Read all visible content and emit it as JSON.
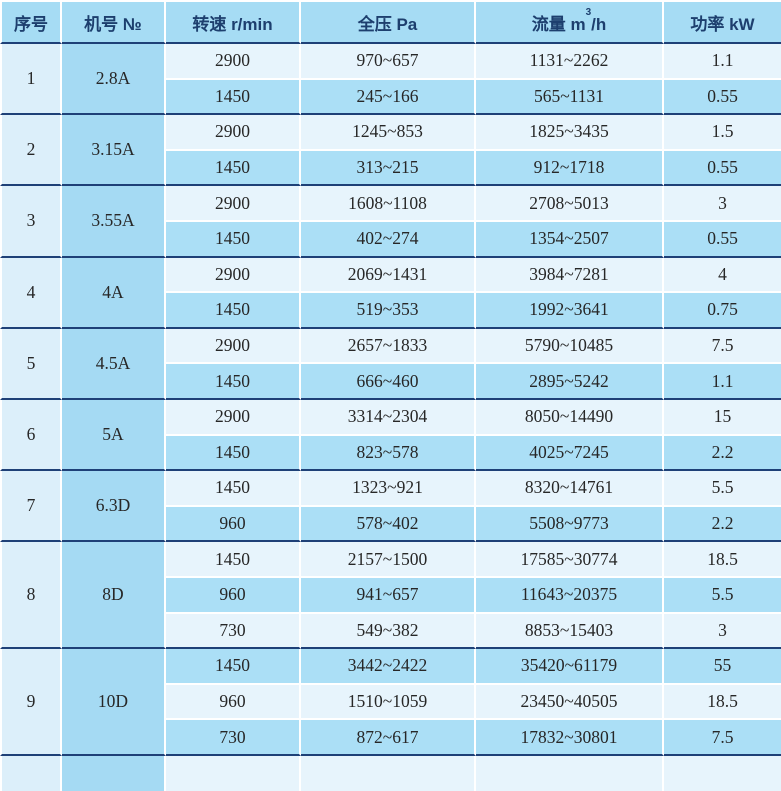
{
  "colors": {
    "header_bg": "#a6dcf4",
    "header_text": "#1d3f6e",
    "serial_col_bg": "#dceffa",
    "model_col_bg": "#a5daf3",
    "row_light_bg": "#e7f4fc",
    "row_medium_bg": "#abdff6",
    "divider_navy": "#1e4077",
    "cell_border_white": "#ffffff",
    "body_text": "#272727"
  },
  "table": {
    "headers": {
      "serial": "序号",
      "model": "机号 №",
      "speed": "转速 r/min",
      "pressure": "全压 Pa",
      "flow_pre": "流量 m",
      "flow_sup": "3",
      "flow_post": "/h",
      "power": "功率 kW"
    },
    "groups": [
      {
        "serial": "1",
        "model": "2.8A",
        "rows": [
          {
            "speed": "2900",
            "pressure": "970~657",
            "flow": "1131~2262",
            "power": "1.1"
          },
          {
            "speed": "1450",
            "pressure": "245~166",
            "flow": "565~1131",
            "power": "0.55"
          }
        ]
      },
      {
        "serial": "2",
        "model": "3.15A",
        "rows": [
          {
            "speed": "2900",
            "pressure": "1245~853",
            "flow": "1825~3435",
            "power": "1.5"
          },
          {
            "speed": "1450",
            "pressure": "313~215",
            "flow": "912~1718",
            "power": "0.55"
          }
        ]
      },
      {
        "serial": "3",
        "model": "3.55A",
        "rows": [
          {
            "speed": "2900",
            "pressure": "1608~1108",
            "flow": "2708~5013",
            "power": "3"
          },
          {
            "speed": "1450",
            "pressure": "402~274",
            "flow": "1354~2507",
            "power": "0.55"
          }
        ]
      },
      {
        "serial": "4",
        "model": "4A",
        "rows": [
          {
            "speed": "2900",
            "pressure": "2069~1431",
            "flow": "3984~7281",
            "power": "4"
          },
          {
            "speed": "1450",
            "pressure": "519~353",
            "flow": "1992~3641",
            "power": "0.75"
          }
        ]
      },
      {
        "serial": "5",
        "model": "4.5A",
        "rows": [
          {
            "speed": "2900",
            "pressure": "2657~1833",
            "flow": "5790~10485",
            "power": "7.5"
          },
          {
            "speed": "1450",
            "pressure": "666~460",
            "flow": "2895~5242",
            "power": "1.1"
          }
        ]
      },
      {
        "serial": "6",
        "model": "5A",
        "rows": [
          {
            "speed": "2900",
            "pressure": "3314~2304",
            "flow": "8050~14490",
            "power": "15"
          },
          {
            "speed": "1450",
            "pressure": "823~578",
            "flow": "4025~7245",
            "power": "2.2"
          }
        ]
      },
      {
        "serial": "7",
        "model": "6.3D",
        "rows": [
          {
            "speed": "1450",
            "pressure": "1323~921",
            "flow": "8320~14761",
            "power": "5.5"
          },
          {
            "speed": "960",
            "pressure": "578~402",
            "flow": "5508~9773",
            "power": "2.2"
          }
        ]
      },
      {
        "serial": "8",
        "model": "8D",
        "rows": [
          {
            "speed": "1450",
            "pressure": "2157~1500",
            "flow": "17585~30774",
            "power": "18.5"
          },
          {
            "speed": "960",
            "pressure": "941~657",
            "flow": "11643~20375",
            "power": "5.5"
          },
          {
            "speed": "730",
            "pressure": "549~382",
            "flow": "8853~15403",
            "power": "3"
          }
        ]
      },
      {
        "serial": "9",
        "model": "10D",
        "rows": [
          {
            "speed": "1450",
            "pressure": "3442~2422",
            "flow": "35420~61179",
            "power": "55"
          },
          {
            "speed": "960",
            "pressure": "1510~1059",
            "flow": "23450~40505",
            "power": "18.5"
          },
          {
            "speed": "730",
            "pressure": "872~617",
            "flow": "17832~30801",
            "power": "7.5"
          }
        ]
      }
    ]
  }
}
